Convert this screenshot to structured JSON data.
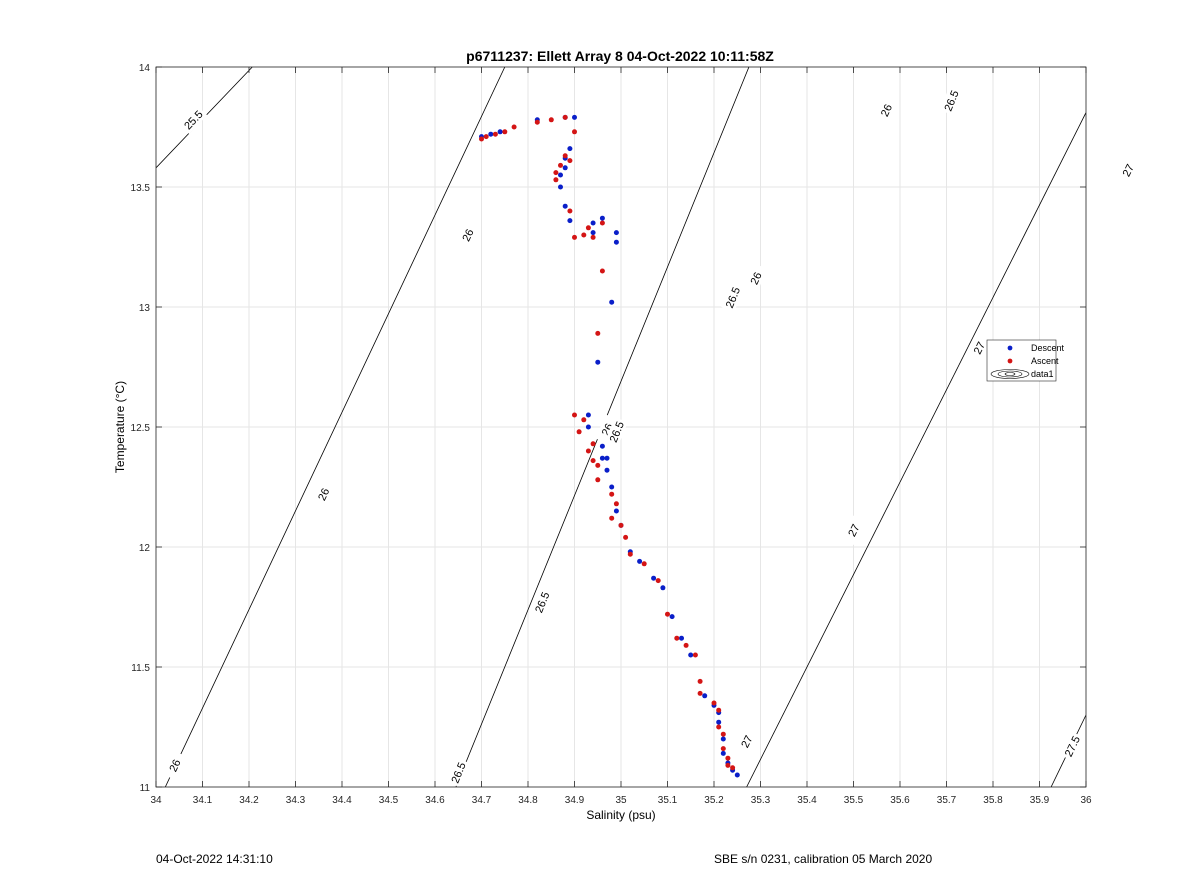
{
  "chart_data": {
    "type": "scatter",
    "title": "p6711237: Ellett Array 8 04-Oct-2022 10:11:58Z",
    "xlabel": "Salinity (psu)",
    "ylabel": "Temperature (°C)",
    "xlim": [
      34,
      36
    ],
    "ylim": [
      11,
      14
    ],
    "xticks": [
      "34",
      "34.1",
      "34.2",
      "34.3",
      "34.4",
      "34.5",
      "34.6",
      "34.7",
      "34.8",
      "34.9",
      "35",
      "35.1",
      "35.2",
      "35.3",
      "35.4",
      "35.5",
      "35.6",
      "35.7",
      "35.8",
      "35.9",
      "36"
    ],
    "yticks": [
      "11",
      "11.5",
      "12",
      "12.5",
      "13",
      "13.5",
      "14"
    ],
    "grid": true,
    "legend": {
      "placement": "right",
      "entries": [
        "Descent",
        "Ascent",
        "data1"
      ]
    },
    "colors": {
      "descent": "#0a1fc9",
      "ascent": "#d41515",
      "contour": "#000000",
      "grid": "#e6e6e6"
    },
    "contours": [
      {
        "level": "25.5",
        "points": [
          [
            34.0,
            13.58
          ],
          [
            34.207,
            14.0
          ]
        ],
        "labels": [
          [
            34.08,
            13.78
          ]
        ]
      },
      {
        "level": "26",
        "points": [
          [
            34.02,
            11.0
          ],
          [
            34.75,
            14.0
          ]
        ],
        "labels": [
          [
            34.04,
            11.09
          ],
          [
            34.36,
            12.22
          ],
          [
            34.67,
            13.3
          ],
          [
            34.97,
            12.49
          ],
          [
            35.29,
            13.12
          ],
          [
            35.57,
            13.82
          ]
        ]
      },
      {
        "level": "26.5",
        "points": [
          [
            34.645,
            11.0
          ],
          [
            35.275,
            14.0
          ]
        ],
        "labels": [
          [
            34.65,
            11.06
          ],
          [
            34.83,
            11.77
          ],
          [
            34.99,
            12.48
          ],
          [
            35.24,
            13.04
          ],
          [
            35.71,
            13.86
          ]
        ]
      },
      {
        "level": "27",
        "points": [
          [
            35.27,
            11.0
          ],
          [
            36.0,
            13.81
          ]
        ],
        "labels": [
          [
            35.27,
            11.19
          ],
          [
            35.5,
            12.07
          ],
          [
            35.77,
            12.83
          ],
          [
            36.09,
            13.57
          ]
        ]
      },
      {
        "level": "27.5",
        "points": [
          [
            35.925,
            11.0
          ],
          [
            36.0,
            11.3
          ]
        ],
        "labels": [
          [
            35.97,
            11.17
          ]
        ]
      }
    ],
    "series": [
      {
        "name": "Descent",
        "points": [
          [
            34.7,
            13.71
          ],
          [
            34.72,
            13.72
          ],
          [
            34.74,
            13.73
          ],
          [
            34.82,
            13.78
          ],
          [
            34.88,
            13.79
          ],
          [
            34.9,
            13.79
          ],
          [
            34.89,
            13.66
          ],
          [
            34.88,
            13.62
          ],
          [
            34.88,
            13.58
          ],
          [
            34.87,
            13.55
          ],
          [
            34.87,
            13.5
          ],
          [
            34.88,
            13.42
          ],
          [
            34.89,
            13.36
          ],
          [
            34.94,
            13.35
          ],
          [
            34.96,
            13.37
          ],
          [
            34.94,
            13.31
          ],
          [
            34.99,
            13.31
          ],
          [
            34.99,
            13.27
          ],
          [
            34.98,
            13.02
          ],
          [
            34.95,
            12.77
          ],
          [
            34.93,
            12.55
          ],
          [
            34.93,
            12.5
          ],
          [
            34.96,
            12.42
          ],
          [
            34.96,
            12.37
          ],
          [
            34.97,
            12.37
          ],
          [
            34.97,
            12.32
          ],
          [
            34.98,
            12.25
          ],
          [
            34.99,
            12.15
          ],
          [
            35.0,
            12.09
          ],
          [
            35.02,
            11.98
          ],
          [
            35.04,
            11.94
          ],
          [
            35.07,
            11.87
          ],
          [
            35.09,
            11.83
          ],
          [
            35.11,
            11.71
          ],
          [
            35.13,
            11.62
          ],
          [
            35.15,
            11.55
          ],
          [
            35.18,
            11.38
          ],
          [
            35.2,
            11.34
          ],
          [
            35.21,
            11.31
          ],
          [
            35.21,
            11.27
          ],
          [
            35.22,
            11.2
          ],
          [
            35.22,
            11.14
          ],
          [
            35.23,
            11.1
          ],
          [
            35.24,
            11.07
          ],
          [
            35.25,
            11.05
          ]
        ]
      },
      {
        "name": "Ascent",
        "points": [
          [
            34.7,
            13.7
          ],
          [
            34.71,
            13.71
          ],
          [
            34.73,
            13.72
          ],
          [
            34.75,
            13.73
          ],
          [
            34.77,
            13.75
          ],
          [
            34.82,
            13.77
          ],
          [
            34.85,
            13.78
          ],
          [
            34.88,
            13.79
          ],
          [
            34.9,
            13.73
          ],
          [
            34.88,
            13.63
          ],
          [
            34.89,
            13.61
          ],
          [
            34.87,
            13.59
          ],
          [
            34.86,
            13.56
          ],
          [
            34.86,
            13.53
          ],
          [
            34.89,
            13.4
          ],
          [
            34.9,
            13.29
          ],
          [
            34.92,
            13.3
          ],
          [
            34.93,
            13.33
          ],
          [
            34.94,
            13.29
          ],
          [
            34.96,
            13.35
          ],
          [
            34.96,
            13.15
          ],
          [
            34.95,
            12.89
          ],
          [
            34.9,
            12.55
          ],
          [
            34.92,
            12.53
          ],
          [
            34.91,
            12.48
          ],
          [
            34.94,
            12.43
          ],
          [
            34.93,
            12.4
          ],
          [
            34.94,
            12.36
          ],
          [
            34.95,
            12.34
          ],
          [
            34.95,
            12.28
          ],
          [
            34.98,
            12.22
          ],
          [
            34.99,
            12.18
          ],
          [
            34.98,
            12.12
          ],
          [
            35.0,
            12.09
          ],
          [
            35.01,
            12.04
          ],
          [
            35.02,
            11.97
          ],
          [
            35.05,
            11.93
          ],
          [
            35.08,
            11.86
          ],
          [
            35.1,
            11.72
          ],
          [
            35.12,
            11.62
          ],
          [
            35.14,
            11.59
          ],
          [
            35.16,
            11.55
          ],
          [
            35.17,
            11.44
          ],
          [
            35.17,
            11.39
          ],
          [
            35.2,
            11.35
          ],
          [
            35.21,
            11.32
          ],
          [
            35.21,
            11.25
          ],
          [
            35.22,
            11.22
          ],
          [
            35.22,
            11.16
          ],
          [
            35.23,
            11.12
          ],
          [
            35.23,
            11.09
          ],
          [
            35.24,
            11.08
          ]
        ]
      }
    ]
  },
  "footer": {
    "left": "04-Oct-2022 14:31:10",
    "right": "SBE s/n 0231, calibration 05 March 2020"
  }
}
